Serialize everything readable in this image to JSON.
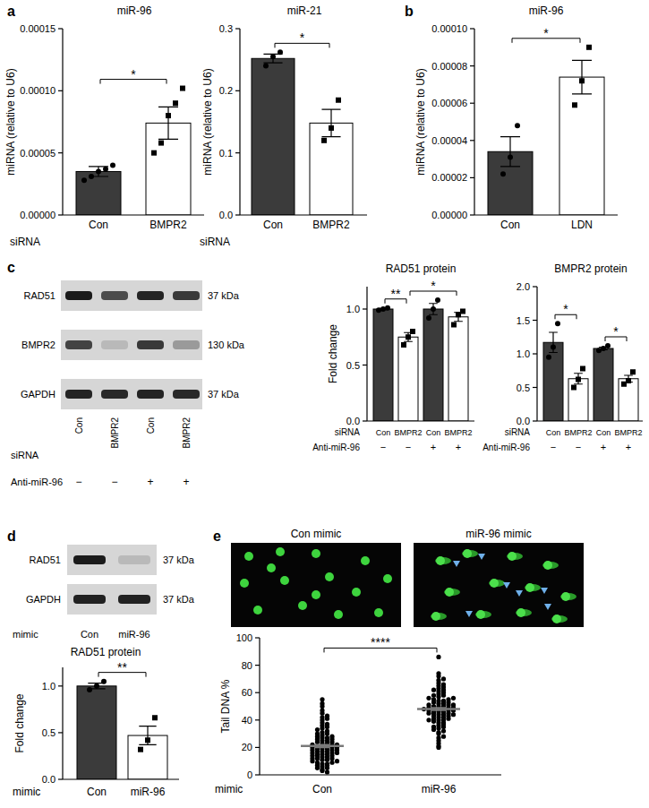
{
  "panel_labels": [
    "a",
    "b",
    "c",
    "d",
    "e"
  ],
  "blots": [
    {
      "rows": [
        {
          "label": "RAD51",
          "size": "37 kDa"
        },
        {
          "label": "BMPR2",
          "size": "130 kDa"
        },
        {
          "label": "GAPDH",
          "size": "37 kDa"
        }
      ],
      "xlabel": "siRNA",
      "lanes": [
        "Con",
        "BMPR2",
        "Con",
        "BMPR2"
      ],
      "rows_below": [
        {
          "label": "Anti-miR-96",
          "values": [
            "−",
            "−",
            "+",
            "+"
          ]
        }
      ]
    },
    {
      "rows": [
        {
          "label": "RAD51",
          "size": "37 kDa"
        },
        {
          "label": "GAPDH",
          "size": "37 kDa"
        }
      ],
      "xlabel": "mimic",
      "lanes": [
        "Con",
        "miR-96"
      ]
    }
  ],
  "images": [
    {
      "title": "Con mimic"
    },
    {
      "title": "miR-96 mimic"
    }
  ],
  "chart_data": [
    {
      "type": "bar",
      "title": "miR-96",
      "ylabel": "miRNA (relative to U6)",
      "xlabel": "siRNA",
      "categories": [
        "Con",
        "BMPR2"
      ],
      "values": [
        3.5e-05,
        7.4e-05
      ],
      "errors": [
        4e-06,
        1.3e-05
      ],
      "points": [
        [
          2.8e-05,
          3.1e-05,
          3.5e-05,
          3.7e-05,
          4e-05
        ],
        [
          5e-05,
          5.8e-05,
          8e-05,
          9e-05,
          0.000102
        ]
      ],
      "colors": [
        "#3b3b3b",
        "#ffffff"
      ],
      "ylim": [
        0,
        0.00015
      ],
      "yticks": [
        {
          "value": 0,
          "label": "0.00000"
        },
        5e-05,
        {
          "value": 0.0001,
          "label": "0.00010"
        },
        0.00015
      ],
      "comparisons": [
        {
          "groups": [
            0,
            1
          ],
          "label": "*"
        }
      ]
    },
    {
      "type": "bar",
      "title": "miR-21",
      "ylabel": "miRNA (relative to U6)",
      "xlabel": "siRNA",
      "categories": [
        "Con",
        "BMPR2"
      ],
      "values": [
        0.252,
        0.148
      ],
      "errors": [
        0.007,
        0.022
      ],
      "points": [
        [
          0.24,
          0.255,
          0.262
        ],
        [
          0.12,
          0.14,
          0.185
        ]
      ],
      "colors": [
        "#3b3b3b",
        "#ffffff"
      ],
      "ylim": [
        0,
        0.3
      ],
      "yticks": [
        {
          "value": 0,
          "label": "0.0"
        },
        0.1,
        0.2,
        0.3
      ],
      "comparisons": [
        {
          "groups": [
            0,
            1
          ],
          "label": "*"
        }
      ]
    },
    {
      "type": "bar",
      "title": "miR-96",
      "ylabel": "miRNA (relative to U6)",
      "categories": [
        "Con",
        "LDN"
      ],
      "values": [
        3.4e-05,
        7.4e-05
      ],
      "errors": [
        8e-06,
        9e-06
      ],
      "points": [
        [
          2.2e-05,
          3.1e-05,
          4.8e-05
        ],
        [
          5.9e-05,
          7.2e-05,
          9e-05
        ]
      ],
      "colors": [
        "#3b3b3b",
        "#ffffff"
      ],
      "ylim": [
        0,
        0.0001
      ],
      "yticks": [
        {
          "value": 0,
          "label": "0.00000"
        },
        2e-05,
        4e-05,
        6e-05,
        8e-05,
        {
          "value": 0.0001,
          "label": "0.00010"
        }
      ],
      "comparisons": [
        {
          "groups": [
            0,
            1
          ],
          "label": "*"
        }
      ]
    },
    {
      "type": "bar",
      "title": "RAD51 protein",
      "ylabel": "Fold change",
      "xlabel": "siRNA",
      "categories": [
        "Con",
        "BMPR2",
        "Con",
        "BMPR2"
      ],
      "values": [
        1.0,
        0.75,
        1.0,
        0.93
      ],
      "errors": [
        0.005,
        0.04,
        0.05,
        0.04
      ],
      "points": [
        [
          0.99,
          1.0,
          1.01
        ],
        [
          0.68,
          0.75,
          0.8
        ],
        [
          0.92,
          1.0,
          1.08
        ],
        [
          0.86,
          0.95,
          0.98
        ]
      ],
      "rows": [
        {
          "label": "Anti-miR-96",
          "values": [
            "−",
            "−",
            "+",
            "+"
          ]
        }
      ],
      "colors": [
        "#3b3b3b",
        "#ffffff",
        "#3b3b3b",
        "#ffffff"
      ],
      "ylim": [
        0,
        1.2
      ],
      "yticks": [
        {
          "value": 0,
          "label": "0.0"
        },
        0.5,
        {
          "value": 1,
          "label": "1.0"
        }
      ],
      "comparisons": [
        {
          "groups": [
            0,
            1
          ],
          "label": "**"
        },
        {
          "groups": [
            1,
            3
          ],
          "label": "*"
        }
      ]
    },
    {
      "type": "bar",
      "title": "BMPR2 protein",
      "xlabel": "siRNA",
      "categories": [
        "Con",
        "BMPR2",
        "Con",
        "BMPR2"
      ],
      "values": [
        1.17,
        0.63,
        1.08,
        0.63
      ],
      "errors": [
        0.15,
        0.08,
        0.02,
        0.05
      ],
      "points": [
        [
          0.95,
          1.1,
          1.45
        ],
        [
          0.5,
          0.62,
          0.78
        ],
        [
          1.05,
          1.08,
          1.12
        ],
        [
          0.55,
          0.6,
          0.73
        ]
      ],
      "rows": [
        {
          "label": "Anti-miR-96",
          "values": [
            "−",
            "−",
            "+",
            "+"
          ]
        }
      ],
      "colors": [
        "#3b3b3b",
        "#ffffff",
        "#3b3b3b",
        "#ffffff"
      ],
      "ylim": [
        0,
        2
      ],
      "yticks": [
        {
          "value": 0,
          "label": "0.0"
        },
        0.5,
        {
          "value": 1,
          "label": "1.0"
        },
        1.5,
        {
          "value": 2,
          "label": "2.0"
        }
      ],
      "comparisons": [
        {
          "groups": [
            0,
            1
          ],
          "label": "*"
        },
        {
          "groups": [
            2,
            3
          ],
          "label": "*"
        }
      ]
    },
    {
      "type": "bar",
      "title": "RAD51 protein",
      "ylabel": "Fold change",
      "xlabel": "mimic",
      "categories": [
        "Con",
        "miR-96"
      ],
      "values": [
        1.0,
        0.47
      ],
      "errors": [
        0.03,
        0.1
      ],
      "points": [
        [
          0.96,
          1.0,
          1.05
        ],
        [
          0.32,
          0.42,
          0.66
        ]
      ],
      "colors": [
        "#3b3b3b",
        "#ffffff"
      ],
      "ylim": [
        0,
        1.2
      ],
      "yticks": [
        {
          "value": 0,
          "label": "0.0"
        },
        0.5,
        {
          "value": 1,
          "label": "1.0"
        }
      ],
      "comparisons": [
        {
          "groups": [
            0,
            1
          ],
          "label": "**"
        }
      ]
    },
    {
      "type": "dot",
      "ylabel": "Tail DNA %",
      "xlabel": "mimic",
      "categories": [
        "Con",
        "miR-96"
      ],
      "values": [
        21,
        48
      ],
      "errors": [
        1,
        1
      ],
      "color": "#000000",
      "points": [
        [
          3,
          4,
          5,
          5,
          6,
          7,
          7,
          8,
          8,
          9,
          9,
          10,
          10,
          11,
          11,
          12,
          12,
          12,
          13,
          13,
          14,
          14,
          14,
          15,
          15,
          15,
          16,
          16,
          16,
          17,
          17,
          17,
          18,
          18,
          18,
          19,
          19,
          19,
          20,
          20,
          20,
          21,
          21,
          21,
          22,
          22,
          22,
          23,
          23,
          24,
          24,
          25,
          25,
          26,
          26,
          27,
          27,
          28,
          28,
          29,
          30,
          30,
          31,
          32,
          33,
          34,
          35,
          36,
          37,
          38,
          40,
          41,
          42,
          43,
          45,
          47,
          50,
          52,
          55,
          2
        ],
        [
          20,
          21,
          23,
          25,
          27,
          28,
          30,
          31,
          32,
          33,
          34,
          35,
          36,
          37,
          38,
          38,
          39,
          40,
          40,
          41,
          41,
          42,
          42,
          43,
          43,
          44,
          44,
          45,
          45,
          45,
          46,
          46,
          46,
          47,
          47,
          47,
          48,
          48,
          48,
          49,
          49,
          49,
          50,
          50,
          50,
          51,
          51,
          51,
          52,
          52,
          53,
          53,
          54,
          54,
          55,
          55,
          56,
          56,
          57,
          58,
          59,
          60,
          61,
          62,
          63,
          64,
          65,
          66,
          67,
          69,
          70,
          72,
          74,
          58,
          48,
          44,
          40,
          35,
          86,
          62
        ]
      ],
      "ylim": [
        0,
        100
      ],
      "yticks": [
        0,
        20,
        40,
        60,
        80,
        100
      ],
      "comparisons": [
        {
          "groups": [
            0,
            1
          ],
          "label": "****"
        }
      ]
    }
  ]
}
